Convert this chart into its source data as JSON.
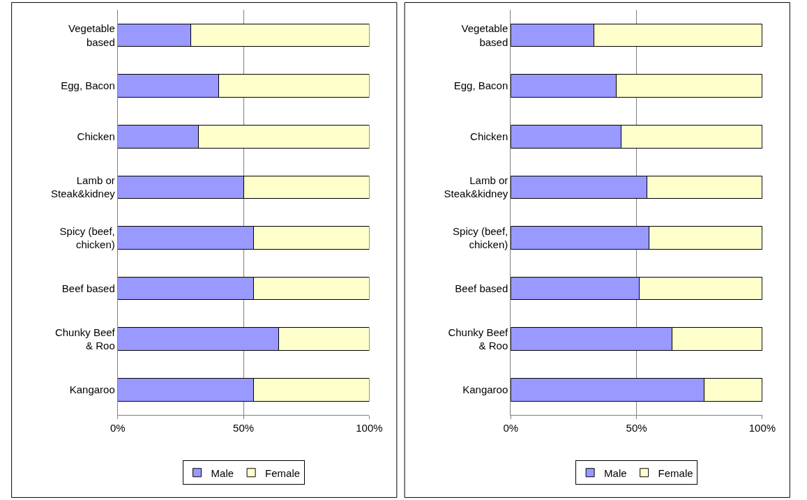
{
  "chart_data": [
    {
      "type": "bar",
      "orientation": "horizontal",
      "stacked": true,
      "categories": [
        "Vegetable\nbased",
        "Egg, Bacon",
        "Chicken",
        "Lamb or\nSteak&kidney",
        "Spicy (beef,\nchicken)",
        "Beef based",
        "Chunky Beef\n& Roo",
        "Kangaroo"
      ],
      "series": [
        {
          "name": "Male",
          "color": "#9999ff",
          "values": [
            29,
            40,
            32,
            50,
            54,
            54,
            64,
            54
          ]
        },
        {
          "name": "Female",
          "color": "#ffffcc",
          "values": [
            71,
            60,
            68,
            50,
            46,
            46,
            36,
            46
          ]
        }
      ],
      "xlim": [
        0,
        100
      ],
      "xticks": [
        {
          "value": 0,
          "label": "0%"
        },
        {
          "value": 50,
          "label": "50%"
        },
        {
          "value": 100,
          "label": "100%"
        }
      ],
      "grid": "x",
      "legend": "bottom"
    },
    {
      "type": "bar",
      "orientation": "horizontal",
      "stacked": true,
      "categories": [
        "Vegetable\nbased",
        "Egg, Bacon",
        "Chicken",
        "Lamb or\nSteak&kidney",
        "Spicy (beef,\nchicken)",
        "Beef based",
        "Chunky Beef\n& Roo",
        "Kangaroo"
      ],
      "series": [
        {
          "name": "Male",
          "color": "#9999ff",
          "values": [
            33,
            42,
            44,
            54,
            55,
            51,
            64,
            77
          ]
        },
        {
          "name": "Female",
          "color": "#ffffcc",
          "values": [
            67,
            58,
            56,
            46,
            45,
            49,
            36,
            23
          ]
        }
      ],
      "xlim": [
        0,
        100
      ],
      "xticks": [
        {
          "value": 0,
          "label": "0%"
        },
        {
          "value": 50,
          "label": "50%"
        },
        {
          "value": 100,
          "label": "100%"
        }
      ],
      "grid": "x",
      "legend": "bottom"
    }
  ]
}
